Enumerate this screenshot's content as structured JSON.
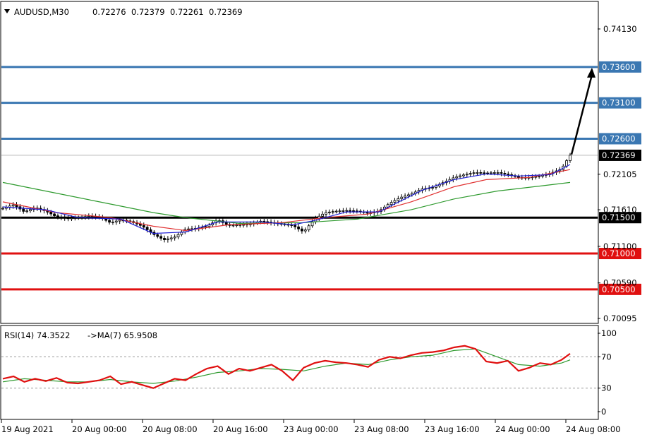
{
  "header": {
    "symbol": "AUDUSD,M30",
    "open": "0.72276",
    "high": "0.72379",
    "low": "0.72261",
    "close": "0.72369"
  },
  "rsi_header": {
    "label": "RSI(14) 74.3522",
    "ma_label": "->MA(7) 65.9508"
  },
  "colors": {
    "candle": "#000000",
    "ma_fast": "#1f1fd6",
    "ma_mid": "#e03030",
    "ma_slow": "#2e9a2e",
    "resistance": "#3a77b2",
    "support_key": "#000000",
    "support": "#e01010",
    "rsi": "#e01010",
    "rsi_ma": "#2e9a2e",
    "current_price_bg": "#000000"
  },
  "chart_data": [
    {
      "type": "candlestick",
      "title": "AUDUSD,M30",
      "y_ticks": [
        "0.74130",
        "0.72105",
        "0.71610",
        "0.71100",
        "0.70590",
        "0.70095"
      ],
      "ylim": [
        0.7,
        0.7435
      ],
      "x_ticks": [
        "19 Aug 2021",
        "20 Aug 00:00",
        "20 Aug 08:00",
        "20 Aug 16:00",
        "23 Aug 00:00",
        "23 Aug 08:00",
        "23 Aug 16:00",
        "24 Aug 00:00",
        "24 Aug 08:00"
      ],
      "levels": [
        {
          "value": 0.736,
          "label": "0.73600",
          "role": "resistance"
        },
        {
          "value": 0.731,
          "label": "0.73100",
          "role": "resistance"
        },
        {
          "value": 0.726,
          "label": "0.72600",
          "role": "resistance"
        },
        {
          "value": 0.715,
          "label": "0.71500",
          "role": "key"
        },
        {
          "value": 0.71,
          "label": "0.71000",
          "role": "support"
        },
        {
          "value": 0.705,
          "label": "0.70500",
          "role": "support"
        }
      ],
      "current_price": {
        "value": 0.72369,
        "label": "0.72369"
      },
      "arrow": {
        "from_value": 0.7238,
        "to_value": 0.7359
      },
      "close_path": [
        [
          0,
          0.7163
        ],
        [
          5,
          0.7168
        ],
        [
          10,
          0.7158
        ],
        [
          15,
          0.7164
        ],
        [
          20,
          0.7159
        ],
        [
          25,
          0.7151
        ],
        [
          30,
          0.7149
        ],
        [
          35,
          0.715
        ],
        [
          40,
          0.7152
        ],
        [
          45,
          0.7151
        ],
        [
          50,
          0.7143
        ],
        [
          55,
          0.7147
        ],
        [
          60,
          0.7144
        ],
        [
          65,
          0.7138
        ],
        [
          70,
          0.7127
        ],
        [
          75,
          0.7119
        ],
        [
          80,
          0.7123
        ],
        [
          85,
          0.7134
        ],
        [
          90,
          0.7135
        ],
        [
          95,
          0.7138
        ],
        [
          100,
          0.7147
        ],
        [
          105,
          0.7139
        ],
        [
          110,
          0.714
        ],
        [
          115,
          0.7141
        ],
        [
          120,
          0.7145
        ],
        [
          125,
          0.7143
        ],
        [
          130,
          0.7141
        ],
        [
          135,
          0.7139
        ],
        [
          140,
          0.713
        ],
        [
          145,
          0.7148
        ],
        [
          150,
          0.7157
        ],
        [
          155,
          0.7159
        ],
        [
          160,
          0.716
        ],
        [
          165,
          0.7159
        ],
        [
          170,
          0.7156
        ],
        [
          175,
          0.7159
        ],
        [
          180,
          0.717
        ],
        [
          185,
          0.7178
        ],
        [
          190,
          0.7183
        ],
        [
          195,
          0.719
        ],
        [
          200,
          0.7192
        ],
        [
          205,
          0.7199
        ],
        [
          210,
          0.7206
        ],
        [
          215,
          0.721
        ],
        [
          220,
          0.7213
        ],
        [
          225,
          0.7212
        ],
        [
          230,
          0.7213
        ],
        [
          235,
          0.721
        ],
        [
          240,
          0.7206
        ],
        [
          245,
          0.7206
        ],
        [
          250,
          0.7208
        ],
        [
          255,
          0.7212
        ],
        [
          260,
          0.7218
        ],
        [
          264,
          0.7237
        ]
      ],
      "ma_fast": [
        [
          0,
          0.7165
        ],
        [
          20,
          0.7161
        ],
        [
          35,
          0.715
        ],
        [
          55,
          0.7148
        ],
        [
          70,
          0.7128
        ],
        [
          85,
          0.713
        ],
        [
          100,
          0.7144
        ],
        [
          120,
          0.7144
        ],
        [
          135,
          0.714
        ],
        [
          145,
          0.7146
        ],
        [
          160,
          0.7158
        ],
        [
          175,
          0.7158
        ],
        [
          195,
          0.7188
        ],
        [
          210,
          0.7203
        ],
        [
          225,
          0.7211
        ],
        [
          240,
          0.7208
        ],
        [
          255,
          0.721
        ],
        [
          264,
          0.7224
        ]
      ],
      "ma_mid": [
        [
          0,
          0.7172
        ],
        [
          25,
          0.7157
        ],
        [
          50,
          0.715
        ],
        [
          70,
          0.7138
        ],
        [
          85,
          0.7132
        ],
        [
          105,
          0.714
        ],
        [
          130,
          0.7143
        ],
        [
          150,
          0.715
        ],
        [
          170,
          0.7155
        ],
        [
          190,
          0.7172
        ],
        [
          210,
          0.7193
        ],
        [
          225,
          0.7203
        ],
        [
          245,
          0.7206
        ],
        [
          264,
          0.7217
        ]
      ],
      "ma_slow": [
        [
          0,
          0.7199
        ],
        [
          20,
          0.7187
        ],
        [
          45,
          0.7172
        ],
        [
          70,
          0.7157
        ],
        [
          85,
          0.715
        ],
        [
          110,
          0.7142
        ],
        [
          140,
          0.7143
        ],
        [
          165,
          0.7148
        ],
        [
          190,
          0.7161
        ],
        [
          210,
          0.7176
        ],
        [
          230,
          0.7187
        ],
        [
          250,
          0.7194
        ],
        [
          264,
          0.7199
        ]
      ]
    },
    {
      "type": "line",
      "title": "RSI(14) 74.3522",
      "y_ticks": [
        "100",
        "70",
        "30",
        "0"
      ],
      "ylim": [
        0,
        100
      ],
      "reference_lines": [
        70,
        30
      ],
      "series": [
        {
          "name": "RSI(14)",
          "values": [
            [
              0,
              42
            ],
            [
              5,
              45
            ],
            [
              10,
              38
            ],
            [
              15,
              42
            ],
            [
              20,
              39
            ],
            [
              25,
              43
            ],
            [
              30,
              37
            ],
            [
              35,
              36
            ],
            [
              40,
              38
            ],
            [
              45,
              40
            ],
            [
              50,
              45
            ],
            [
              55,
              35
            ],
            [
              60,
              38
            ],
            [
              65,
              34
            ],
            [
              70,
              30
            ],
            [
              75,
              36
            ],
            [
              80,
              42
            ],
            [
              85,
              40
            ],
            [
              90,
              48
            ],
            [
              95,
              55
            ],
            [
              100,
              58
            ],
            [
              105,
              48
            ],
            [
              110,
              55
            ],
            [
              115,
              52
            ],
            [
              120,
              56
            ],
            [
              125,
              60
            ],
            [
              130,
              52
            ],
            [
              135,
              40
            ],
            [
              140,
              56
            ],
            [
              145,
              62
            ],
            [
              150,
              65
            ],
            [
              155,
              63
            ],
            [
              160,
              62
            ],
            [
              165,
              60
            ],
            [
              170,
              57
            ],
            [
              175,
              66
            ],
            [
              180,
              70
            ],
            [
              185,
              68
            ],
            [
              190,
              72
            ],
            [
              195,
              75
            ],
            [
              200,
              76
            ],
            [
              205,
              78
            ],
            [
              210,
              82
            ],
            [
              215,
              84
            ],
            [
              220,
              80
            ],
            [
              225,
              64
            ],
            [
              230,
              62
            ],
            [
              235,
              65
            ],
            [
              240,
              52
            ],
            [
              245,
              56
            ],
            [
              250,
              62
            ],
            [
              255,
              60
            ],
            [
              260,
              66
            ],
            [
              264,
              74
            ]
          ]
        },
        {
          "name": "MA(7)",
          "values": [
            [
              0,
              38
            ],
            [
              10,
              42
            ],
            [
              20,
              40
            ],
            [
              30,
              38
            ],
            [
              40,
              38
            ],
            [
              50,
              41
            ],
            [
              60,
              38
            ],
            [
              70,
              36
            ],
            [
              80,
              39
            ],
            [
              90,
              44
            ],
            [
              100,
              50
            ],
            [
              110,
              52
            ],
            [
              120,
              55
            ],
            [
              130,
              54
            ],
            [
              140,
              52
            ],
            [
              150,
              58
            ],
            [
              160,
              62
            ],
            [
              170,
              60
            ],
            [
              180,
              66
            ],
            [
              190,
              70
            ],
            [
              200,
              72
            ],
            [
              210,
              78
            ],
            [
              220,
              80
            ],
            [
              230,
              70
            ],
            [
              240,
              60
            ],
            [
              250,
              58
            ],
            [
              260,
              62
            ],
            [
              264,
              66
            ]
          ]
        }
      ]
    }
  ]
}
